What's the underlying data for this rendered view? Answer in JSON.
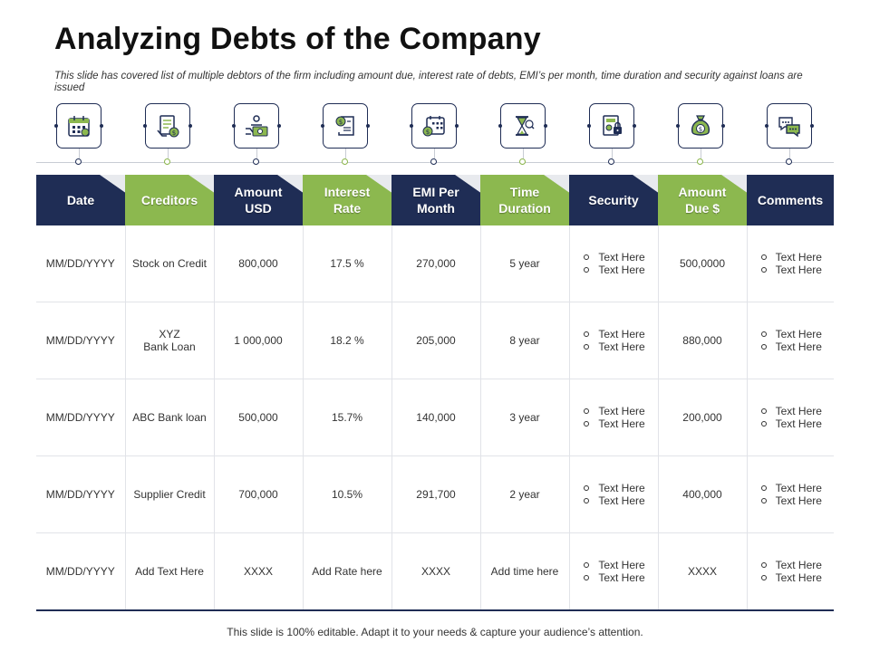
{
  "title": "Analyzing Debts of the Company",
  "subtitle": "This slide has covered list of multiple debtors of the firm including amount due, interest rate of debts, EMI’s  per month, time duration and security against loans are issued",
  "icons": [
    {
      "name": "calendar-icon",
      "dot": "navy"
    },
    {
      "name": "document-money-icon",
      "dot": "green"
    },
    {
      "name": "money-hand-icon",
      "dot": "navy"
    },
    {
      "name": "dollar-receipt-icon",
      "dot": "green"
    },
    {
      "name": "payment-calendar-icon",
      "dot": "navy"
    },
    {
      "name": "hourglass-icon",
      "dot": "green"
    },
    {
      "name": "safe-lock-icon",
      "dot": "navy"
    },
    {
      "name": "money-bag-icon",
      "dot": "green"
    },
    {
      "name": "chat-bubbles-icon",
      "dot": "navy"
    }
  ],
  "colors": {
    "navy": "#1f2d55",
    "green": "#8cb84f"
  },
  "table": {
    "headers": [
      {
        "label": "Date",
        "color": "navy"
      },
      {
        "label": "Creditors",
        "color": "green"
      },
      {
        "label": "Amount\nUSD",
        "color": "navy"
      },
      {
        "label": "Interest\nRate",
        "color": "green"
      },
      {
        "label": "EMI Per\nMonth",
        "color": "navy"
      },
      {
        "label": "Time\nDuration",
        "color": "green"
      },
      {
        "label": "Security",
        "color": "navy"
      },
      {
        "label": "Amount\nDue $",
        "color": "green"
      },
      {
        "label": "Comments",
        "color": "navy"
      }
    ],
    "rows": [
      {
        "date": "MM/DD/YYYY",
        "creditor": "Stock on Credit",
        "amount": "800,000",
        "rate": "17.5 %",
        "emi": "270,000",
        "duration": "5 year",
        "security": [
          "Text Here",
          "Text Here"
        ],
        "due": "500,0000",
        "comments": [
          "Text Here",
          "Text Here"
        ]
      },
      {
        "date": "MM/DD/YYYY",
        "creditor": "XYZ\nBank Loan",
        "amount": "1 000,000",
        "rate": "18.2 %",
        "emi": "205,000",
        "duration": "8 year",
        "security": [
          "Text Here",
          "Text Here"
        ],
        "due": "880,000",
        "comments": [
          "Text Here",
          "Text Here"
        ]
      },
      {
        "date": "MM/DD/YYYY",
        "creditor": "ABC Bank loan",
        "amount": "500,000",
        "rate": "15.7%",
        "emi": "140,000",
        "duration": "3 year",
        "security": [
          "Text Here",
          "Text Here"
        ],
        "due": "200,000",
        "comments": [
          "Text Here",
          "Text Here"
        ]
      },
      {
        "date": "MM/DD/YYYY",
        "creditor": "Supplier Credit",
        "amount": "700,000",
        "rate": "10.5%",
        "emi": "291,700",
        "duration": "2 year",
        "security": [
          "Text Here",
          "Text Here"
        ],
        "due": "400,000",
        "comments": [
          "Text Here",
          "Text Here"
        ]
      },
      {
        "date": "MM/DD/YYYY",
        "creditor": "Add Text Here",
        "amount": "XXXX",
        "rate": "Add Rate here",
        "emi": "XXXX",
        "duration": "Add time here",
        "security": [
          "Text Here",
          "Text Here"
        ],
        "due": "XXXX",
        "comments": [
          "Text Here",
          "Text Here"
        ]
      }
    ]
  },
  "footer": "This slide is 100% editable. Adapt it to your needs & capture your audience’s attention."
}
